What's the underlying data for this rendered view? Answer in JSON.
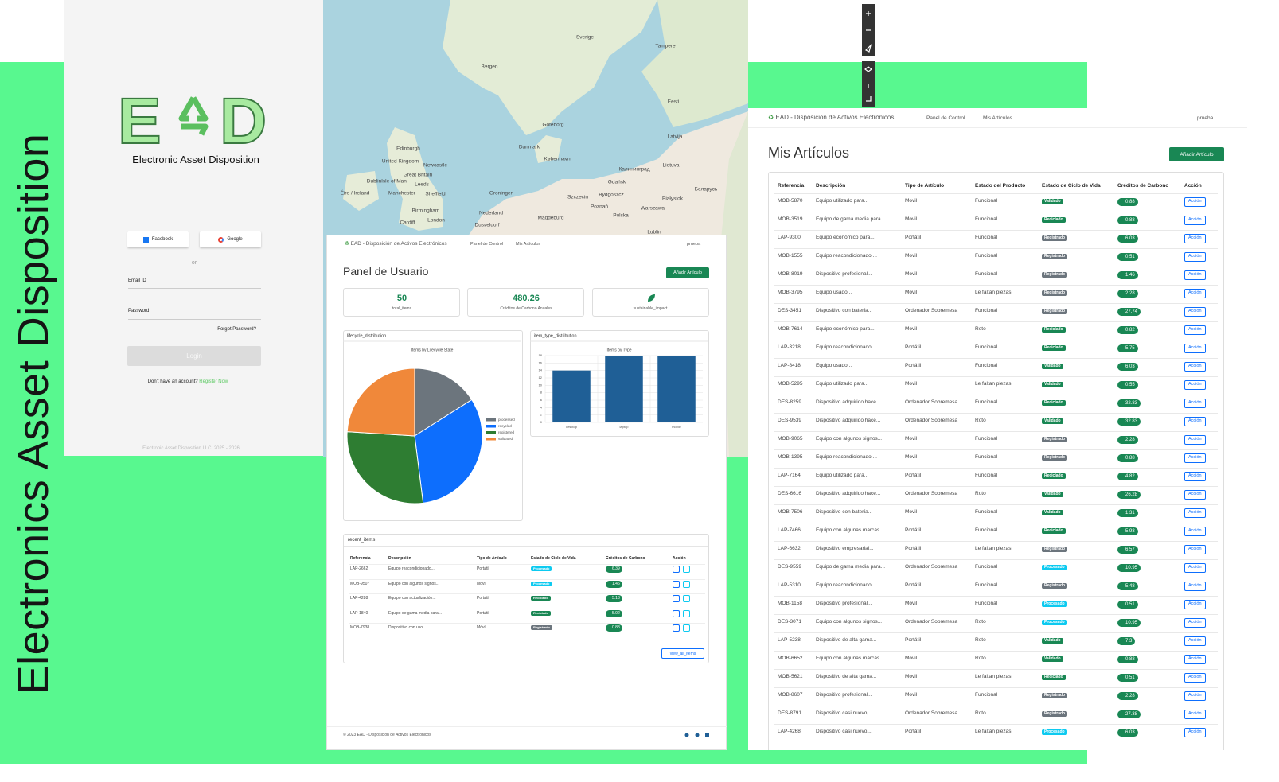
{
  "banner": {
    "title": "Electronics Asset Disposition"
  },
  "login": {
    "logo_letters": [
      "E",
      "D"
    ],
    "subtitle": "Electronic Asset Disposition",
    "facebook": "Facebook",
    "google": "Google",
    "or": "or",
    "email_label": "Email ID",
    "password_label": "Password",
    "forgot": "Forgot Password?",
    "login_button": "Login",
    "no_account": "Don't have an account?",
    "register": "Register Now",
    "footer": "Electronic Asset Disposition LLC. 2025 - 2026"
  },
  "map": {
    "labels": [
      "Sverige",
      "Tampere",
      "Bergen",
      "Göteborg",
      "Danmark",
      "København",
      "Edinburgh",
      "Newcastle",
      "United Kingdom",
      "Great Britain",
      "Isle of Man",
      "Dublin",
      "Éire / Ireland",
      "Leeds",
      "Manchester",
      "Sheffield",
      "Birmingham",
      "Cardiff",
      "London",
      "Groningen",
      "Nederland",
      "Dusseldorf",
      "Magdeburg",
      "Szczecin",
      "Gdańsk",
      "Bydgoszcz",
      "Poznań",
      "Polska",
      "Warszawa",
      "Lublin",
      "Lietuva",
      "Latvija",
      "Eesti",
      "Калининград",
      "Białystok",
      "Беларусь"
    ]
  },
  "nav": {
    "brand": "EAD - Disposición de Activos Electrónicos",
    "panel": "Panel de Control",
    "items": "Mis Artículos",
    "user": "prueba"
  },
  "dashboard": {
    "title": "Panel de Usuario",
    "add_button": "Añadir Artículo",
    "stats": [
      {
        "value": "50",
        "label": "total_items"
      },
      {
        "value": "480.26",
        "label": "Créditos de Carbono Anuales"
      },
      {
        "label": "sustainable_impact"
      }
    ],
    "footer": "© 2023 EAD - Disposición de Activos Electrónicos",
    "view_all": "view_all_items",
    "recent": {
      "header": "recent_items",
      "columns": [
        "Referencia",
        "Descripción",
        "Tipo de Artículo",
        "Estado de Ciclo de Vida",
        "Créditos de Carbono",
        "Acción"
      ],
      "rows": [
        [
          "LAP-2662",
          "Equipo reacondicionado,...",
          "Portátil",
          "Procesado",
          "6.39"
        ],
        [
          "MOB-9507",
          "Equipo con algunos signos...",
          "Móvil",
          "Procesado",
          "1.46"
        ],
        [
          "LAP-4288",
          "Equipo con actualización...",
          "Portátil",
          "Reciclado",
          "5.13"
        ],
        [
          "LAP-1840",
          "Equipo de gama media para...",
          "Portátil",
          "Reciclado",
          "5.02"
        ],
        [
          "MOB-7938",
          "Dispositivo con uso...",
          "Móvil",
          "Registrado",
          "0.88"
        ]
      ]
    }
  },
  "chart_data": [
    {
      "type": "pie",
      "header": "lifecycle_distribution",
      "title": "Items by Lifecycle State",
      "categories": [
        "processed",
        "recycled",
        "registered",
        "validated"
      ],
      "values": [
        8,
        16,
        14,
        12
      ],
      "colors": [
        "#6c757d",
        "#0d6efd",
        "#2e7d32",
        "#f0883a"
      ]
    },
    {
      "type": "bar",
      "header": "item_type_distribution",
      "title": "Items by Type",
      "categories": [
        "desktop",
        "laptop",
        "mobile"
      ],
      "values": [
        14,
        18,
        18
      ],
      "color": "#1f5f96",
      "ylim": [
        0,
        18
      ],
      "yticks": [
        0,
        2,
        4,
        6,
        8,
        10,
        12,
        14,
        16,
        18
      ],
      "grid": true
    }
  ],
  "articles": {
    "title": "Mis Artículos",
    "add_button": "Añadir Artículo",
    "action": "Acción",
    "badge_colors": {
      "Validado": "#198754",
      "Reciclado": "#198754",
      "Registrado": "#6c757d",
      "Procesado": "#0dcaf0"
    },
    "columns": [
      "Referencia",
      "Descripción",
      "Tipo de Artículo",
      "Estado del Producto",
      "Estado de Ciclo de Vida",
      "Créditos de Carbono",
      "Acción"
    ],
    "rows": [
      [
        "MOB-5870",
        "Equipo utilizado para...",
        "Móvil",
        "Funcional",
        "Validado",
        "0.88"
      ],
      [
        "MOB-3519",
        "Equipo de gama media para...",
        "Móvil",
        "Funcional",
        "Reciclado",
        "0.88"
      ],
      [
        "LAP-9300",
        "Equipo económico para...",
        "Portátil",
        "Funcional",
        "Registrado",
        "6.03"
      ],
      [
        "MOB-1555",
        "Equipo reacondicionado,...",
        "Móvil",
        "Funcional",
        "Registrado",
        "0.51"
      ],
      [
        "MOB-8019",
        "Dispositivo profesional...",
        "Móvil",
        "Funcional",
        "Registrado",
        "1.46"
      ],
      [
        "MOB-3795",
        "Equipo usado...",
        "Móvil",
        "Le faltan piezas",
        "Registrado",
        "2.28"
      ],
      [
        "DES-3451",
        "Dispositivo con batería...",
        "Ordenador Sobremesa",
        "Funcional",
        "Registrado",
        "27.74"
      ],
      [
        "MOB-7614",
        "Equipo económico para...",
        "Móvil",
        "Roto",
        "Reciclado",
        "0.82"
      ],
      [
        "LAP-3218",
        "Equipo reacondicionado,...",
        "Portátil",
        "Funcional",
        "Reciclado",
        "5.75"
      ],
      [
        "LAP-8418",
        "Equipo usado...",
        "Portátil",
        "Funcional",
        "Validado",
        "6.03"
      ],
      [
        "MOB-5295",
        "Equipo utilizado para...",
        "Móvil",
        "Le faltan piezas",
        "Validado",
        "0.55"
      ],
      [
        "DES-8259",
        "Dispositivo adquirido hace...",
        "Ordenador Sobremesa",
        "Funcional",
        "Reciclado",
        "32.83"
      ],
      [
        "DES-9539",
        "Dispositivo adquirido hace...",
        "Ordenador Sobremesa",
        "Roto",
        "Validado",
        "32.83"
      ],
      [
        "MOB-9065",
        "Equipo con algunos signos...",
        "Móvil",
        "Funcional",
        "Registrado",
        "2.28"
      ],
      [
        "MOB-1395",
        "Equipo reacondicionado,...",
        "Móvil",
        "Funcional",
        "Registrado",
        "0.88"
      ],
      [
        "LAP-7164",
        "Equipo utilizado para...",
        "Portátil",
        "Funcional",
        "Reciclado",
        "4.82"
      ],
      [
        "DES-6616",
        "Dispositivo adquirido hace...",
        "Ordenador Sobremesa",
        "Roto",
        "Validado",
        "26.28"
      ],
      [
        "MOB-7506",
        "Dispositivo con batería...",
        "Móvil",
        "Funcional",
        "Validado",
        "1.31"
      ],
      [
        "LAP-7466",
        "Equipo con algunas marcas...",
        "Portátil",
        "Funcional",
        "Reciclado",
        "5.93"
      ],
      [
        "LAP-6632",
        "Dispositivo empresarial...",
        "Portátil",
        "Le faltan piezas",
        "Registrado",
        "6.57"
      ],
      [
        "DES-9559",
        "Equipo de gama media para...",
        "Ordenador Sobremesa",
        "Funcional",
        "Procesado",
        "10.95"
      ],
      [
        "LAP-5310",
        "Equipo reacondicionado,...",
        "Portátil",
        "Funcional",
        "Registrado",
        "5.48"
      ],
      [
        "MOB-1158",
        "Dispositivo profesional...",
        "Móvil",
        "Funcional",
        "Procesado",
        "0.51"
      ],
      [
        "DES-3071",
        "Equipo con algunos signos...",
        "Ordenador Sobremesa",
        "Roto",
        "Procesado",
        "10.95"
      ],
      [
        "LAP-5238",
        "Dispositivo de alta gama...",
        "Portátil",
        "Roto",
        "Validado",
        "7.3"
      ],
      [
        "MOB-6652",
        "Equipo con algunas marcas...",
        "Móvil",
        "Roto",
        "Validado",
        "0.88"
      ],
      [
        "MOB-5621",
        "Dispositivo de alta gama...",
        "Móvil",
        "Le faltan piezas",
        "Reciclado",
        "0.51"
      ],
      [
        "MOB-8607",
        "Dispositivo profesional...",
        "Móvil",
        "Funcional",
        "Registrado",
        "2.28"
      ],
      [
        "DES-8791",
        "Dispositivo casi nuevo,...",
        "Ordenador Sobremesa",
        "Roto",
        "Registrado",
        "27.38"
      ],
      [
        "LAP-4268",
        "Dispositivo casi nuevo,...",
        "Portátil",
        "Le faltan piezas",
        "Procesado",
        "6.03"
      ]
    ]
  }
}
